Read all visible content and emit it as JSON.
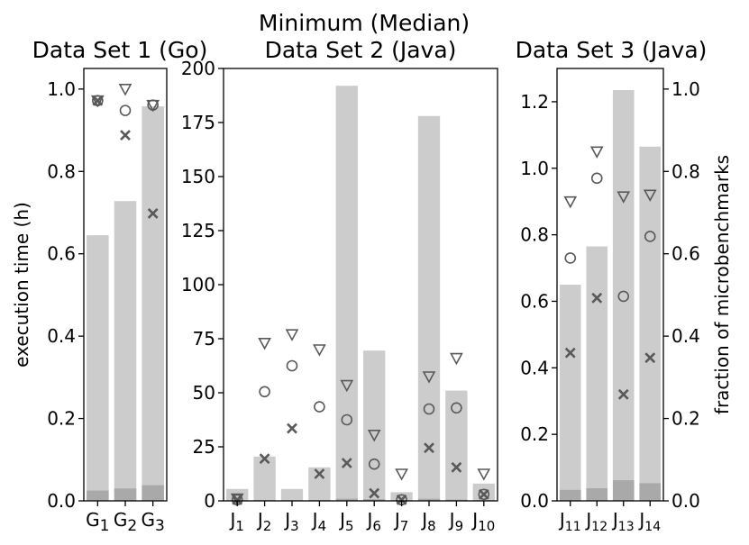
{
  "figure": {
    "suptitle": "Minimum (Median)"
  },
  "chart_data": [
    {
      "type": "bar",
      "title": "Data Set 1 (Go)",
      "ylabel": "execution time (h)",
      "ylim": [
        0,
        1.05
      ],
      "yticks": [
        0.0,
        0.2,
        0.4,
        0.6,
        0.8,
        1.0
      ],
      "categories": [
        "G1",
        "G2",
        "G3"
      ],
      "category_labels": [
        [
          "G",
          "1"
        ],
        [
          "G",
          "2"
        ],
        [
          "G",
          "3"
        ]
      ],
      "series": [
        {
          "name": "",
          "kind": "bar",
          "values": [
            0.645,
            0.728,
            0.958
          ],
          "color": "#cccccc"
        },
        {
          "name": "",
          "kind": "bar",
          "values": [
            0.025,
            0.03,
            0.038
          ],
          "color": "#a9a9a9"
        },
        {
          "name": "",
          "kind": "marker",
          "marker": "x",
          "values": [
            0.972,
            0.888,
            0.698
          ]
        },
        {
          "name": "",
          "kind": "marker",
          "marker": "o",
          "values": [
            0.972,
            0.948,
            0.961
          ]
        },
        {
          "name": "",
          "kind": "marker",
          "marker": "v",
          "values": [
            0.972,
            1.0,
            0.961
          ]
        }
      ]
    },
    {
      "type": "bar",
      "title": "Data Set 2 (Java)",
      "ylim": [
        0,
        200
      ],
      "yticks": [
        0,
        25,
        50,
        75,
        100,
        125,
        150,
        175,
        200
      ],
      "categories": [
        "J1",
        "J2",
        "J3",
        "J4",
        "J5",
        "J6",
        "J7",
        "J8",
        "J9",
        "J10"
      ],
      "category_labels": [
        [
          "J",
          "1"
        ],
        [
          "J",
          "2"
        ],
        [
          "J",
          "3"
        ],
        [
          "J",
          "4"
        ],
        [
          "J",
          "5"
        ],
        [
          "J",
          "6"
        ],
        [
          "J",
          "7"
        ],
        [
          "J",
          "8"
        ],
        [
          "J",
          "9"
        ],
        [
          "J",
          "10"
        ]
      ],
      "series": [
        {
          "name": "",
          "kind": "bar",
          "values": [
            5.5,
            20.5,
            5.5,
            15.5,
            192.0,
            69.5,
            4.0,
            178.0,
            51.0,
            8.0
          ],
          "color": "#cccccc"
        },
        {
          "name": "",
          "kind": "bar",
          "values": [
            0.3,
            0.4,
            0.3,
            0.4,
            1.0,
            0.8,
            0.3,
            1.0,
            0.6,
            0.3
          ],
          "color": "#a9a9a9"
        },
        {
          "name": "",
          "kind": "marker",
          "marker": "x",
          "values": [
            0.5,
            19.5,
            33.5,
            12.5,
            17.5,
            3.5,
            0.5,
            24.5,
            15.5,
            3.0
          ]
        },
        {
          "name": "",
          "kind": "marker",
          "marker": "o",
          "values": [
            0.5,
            50.5,
            62.5,
            43.5,
            37.5,
            17.0,
            0.5,
            42.5,
            43.0,
            3.0
          ]
        },
        {
          "name": "",
          "kind": "marker",
          "marker": "v",
          "values": [
            1.0,
            73.0,
            77.0,
            70.0,
            53.5,
            30.5,
            12.5,
            57.5,
            66.0,
            12.5
          ]
        }
      ]
    },
    {
      "type": "bar",
      "title": "Data Set 3 (Java)",
      "ylabel_right": "fraction of microbenchmarks",
      "ylim": [
        0,
        1.3
      ],
      "yticks": [
        0.0,
        0.2,
        0.4,
        0.6,
        0.8,
        1.0,
        1.2
      ],
      "ylim_right": [
        0,
        1.05
      ],
      "yticks_right": [
        0.0,
        0.2,
        0.4,
        0.6,
        0.8,
        1.0
      ],
      "categories": [
        "J11",
        "J12",
        "J13",
        "J14"
      ],
      "category_labels": [
        [
          "J",
          "11"
        ],
        [
          "J",
          "12"
        ],
        [
          "J",
          "13"
        ],
        [
          "J",
          "14"
        ]
      ],
      "series": [
        {
          "name": "",
          "kind": "bar",
          "values": [
            0.65,
            0.765,
            1.235,
            1.065
          ],
          "color": "#cccccc"
        },
        {
          "name": "",
          "kind": "bar",
          "values": [
            0.033,
            0.038,
            0.062,
            0.053
          ],
          "color": "#a9a9a9"
        },
        {
          "name": "",
          "kind": "marker",
          "marker": "x",
          "values": [
            0.445,
            0.61,
            0.32,
            0.43
          ]
        },
        {
          "name": "",
          "kind": "marker",
          "marker": "o",
          "values": [
            0.73,
            0.97,
            0.615,
            0.795
          ]
        },
        {
          "name": "",
          "kind": "marker",
          "marker": "v",
          "values": [
            0.9,
            1.05,
            0.915,
            0.92
          ]
        }
      ]
    }
  ]
}
